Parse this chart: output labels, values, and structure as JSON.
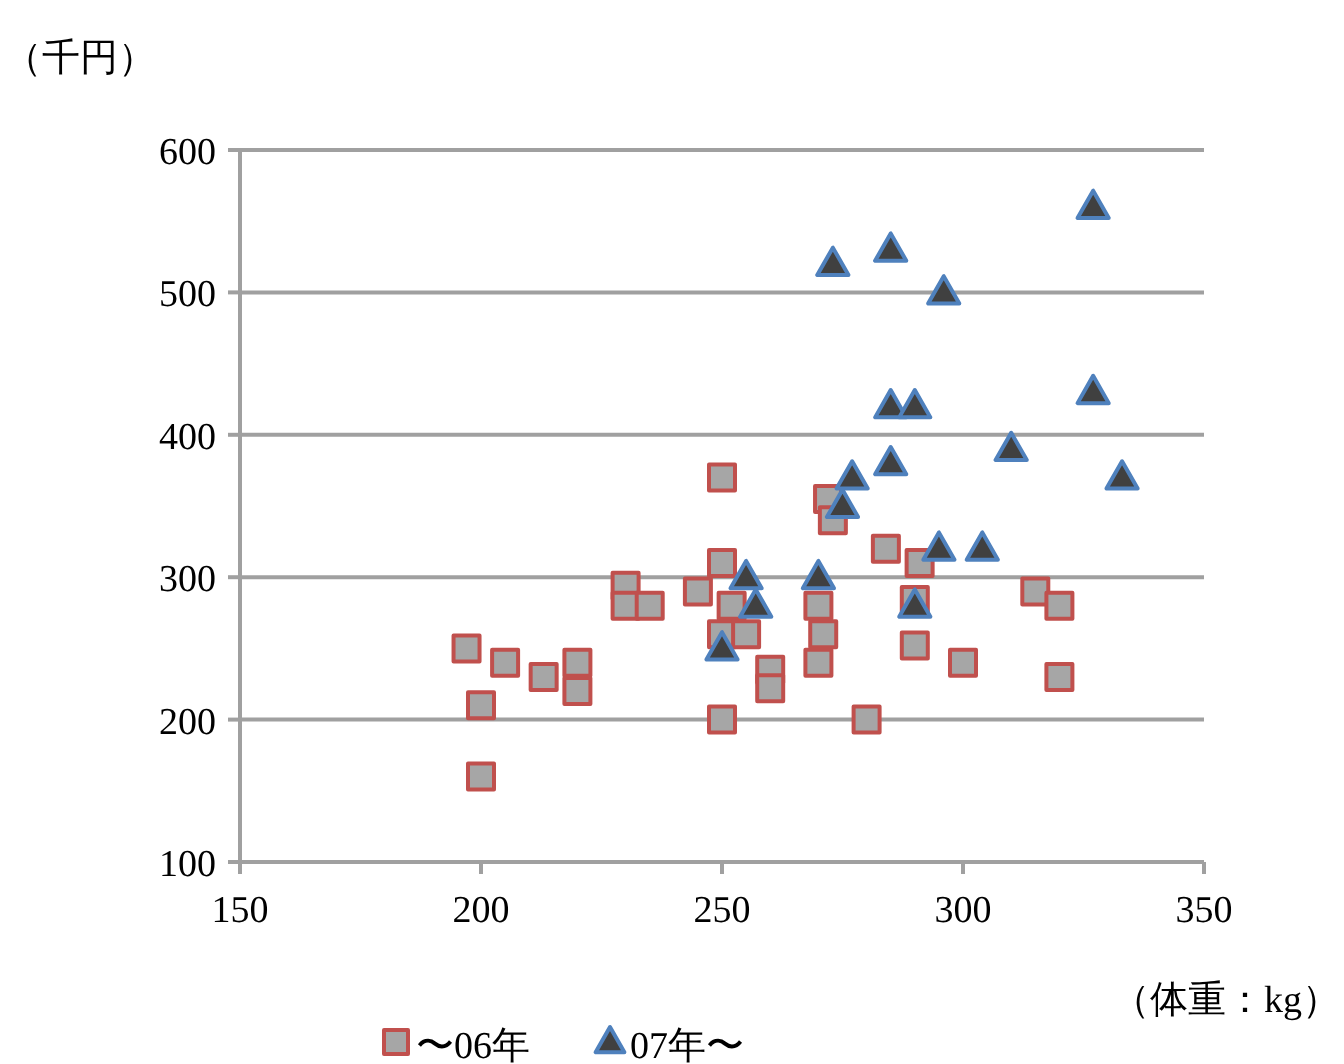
{
  "chart_data": {
    "type": "scatter",
    "xlabel": "（体重：kg）",
    "ylabel": "（千円）",
    "xlim": [
      150,
      350
    ],
    "xticks": [
      150,
      200,
      250,
      300,
      350
    ],
    "ylim": [
      100,
      600
    ],
    "yticks": [
      100,
      200,
      300,
      400,
      500,
      600
    ],
    "grid": "y",
    "legend": "bottom",
    "series": [
      {
        "name": "〜06年",
        "color": "#a6a6a6",
        "marker": "square",
        "x": [
          197,
          200,
          200,
          205,
          213,
          220,
          220,
          230,
          230,
          235,
          245,
          250,
          250,
          252,
          250,
          255,
          260,
          260,
          250,
          270,
          271,
          270,
          272,
          273,
          284,
          291,
          290,
          290,
          280,
          300,
          315,
          320,
          320
        ],
        "values": [
          250,
          210,
          160,
          240,
          230,
          240,
          220,
          294,
          280,
          280,
          290,
          370,
          310,
          280,
          260,
          260,
          235,
          222,
          200,
          280,
          260,
          240,
          355,
          340,
          320,
          310,
          284,
          252,
          200,
          240,
          290,
          280,
          230
        ]
      },
      {
        "name": "07年〜",
        "color": "#404040",
        "marker": "triangle",
        "x": [
          327,
          273,
          285,
          296,
          285,
          290,
          327,
          310,
          285,
          277,
          333,
          275,
          295,
          304,
          270,
          290,
          255,
          257,
          250
        ],
        "values": [
          560,
          520,
          530,
          500,
          420,
          420,
          430,
          390,
          380,
          370,
          370,
          350,
          320,
          320,
          300,
          280,
          300,
          280,
          250
        ]
      }
    ]
  }
}
